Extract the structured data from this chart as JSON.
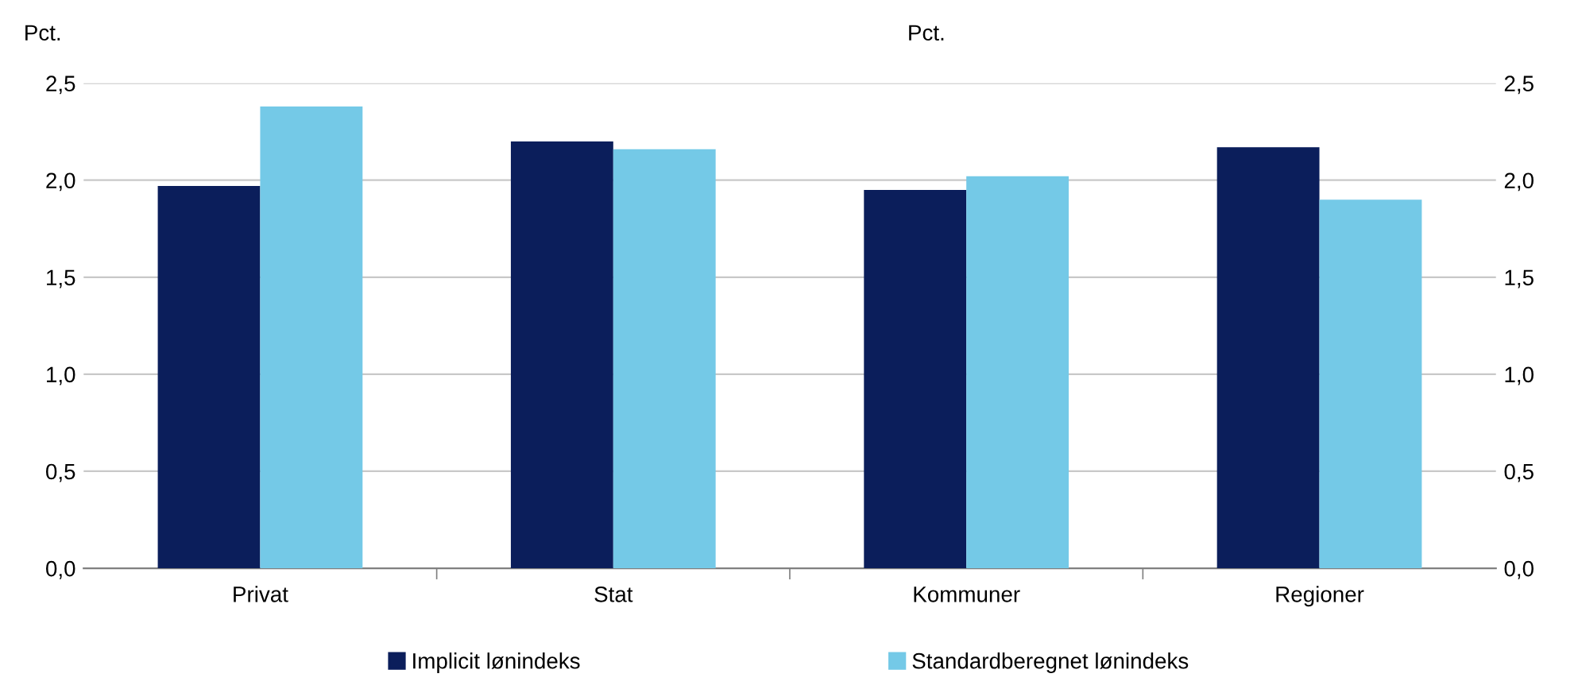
{
  "chart_data": {
    "type": "bar",
    "ylabel": "Pct.",
    "y2label": "Pct.",
    "categories": [
      "Privat",
      "Stat",
      "Kommuner",
      "Regioner"
    ],
    "series": [
      {
        "name": "Implicit lønindeks",
        "color": "#0b1e5b",
        "values": [
          1.97,
          2.2,
          1.95,
          2.17
        ]
      },
      {
        "name": "Standardberegnet lønindeks",
        "color": "#74c9e7",
        "values": [
          2.38,
          2.16,
          2.02,
          1.9
        ]
      }
    ],
    "ylim": [
      0,
      2.5
    ],
    "yticks": [
      {
        "value": 0,
        "label": "0,0"
      },
      {
        "value": 0.5,
        "label": "0,5"
      },
      {
        "value": 1.0,
        "label": "1,0"
      },
      {
        "value": 1.5,
        "label": "1,5"
      },
      {
        "value": 2.0,
        "label": "2,0"
      },
      {
        "value": 2.5,
        "label": "2,5"
      }
    ],
    "y2lim": [
      0,
      2.5
    ],
    "y2ticks": [
      {
        "value": 0,
        "label": "0,0"
      },
      {
        "value": 0.5,
        "label": "0,5"
      },
      {
        "value": 1.0,
        "label": "1,0"
      },
      {
        "value": 1.5,
        "label": "1,5"
      },
      {
        "value": 2.0,
        "label": "2,0"
      },
      {
        "value": 2.5,
        "label": "2,5"
      }
    ],
    "grid": "y",
    "legend": "bottom"
  }
}
